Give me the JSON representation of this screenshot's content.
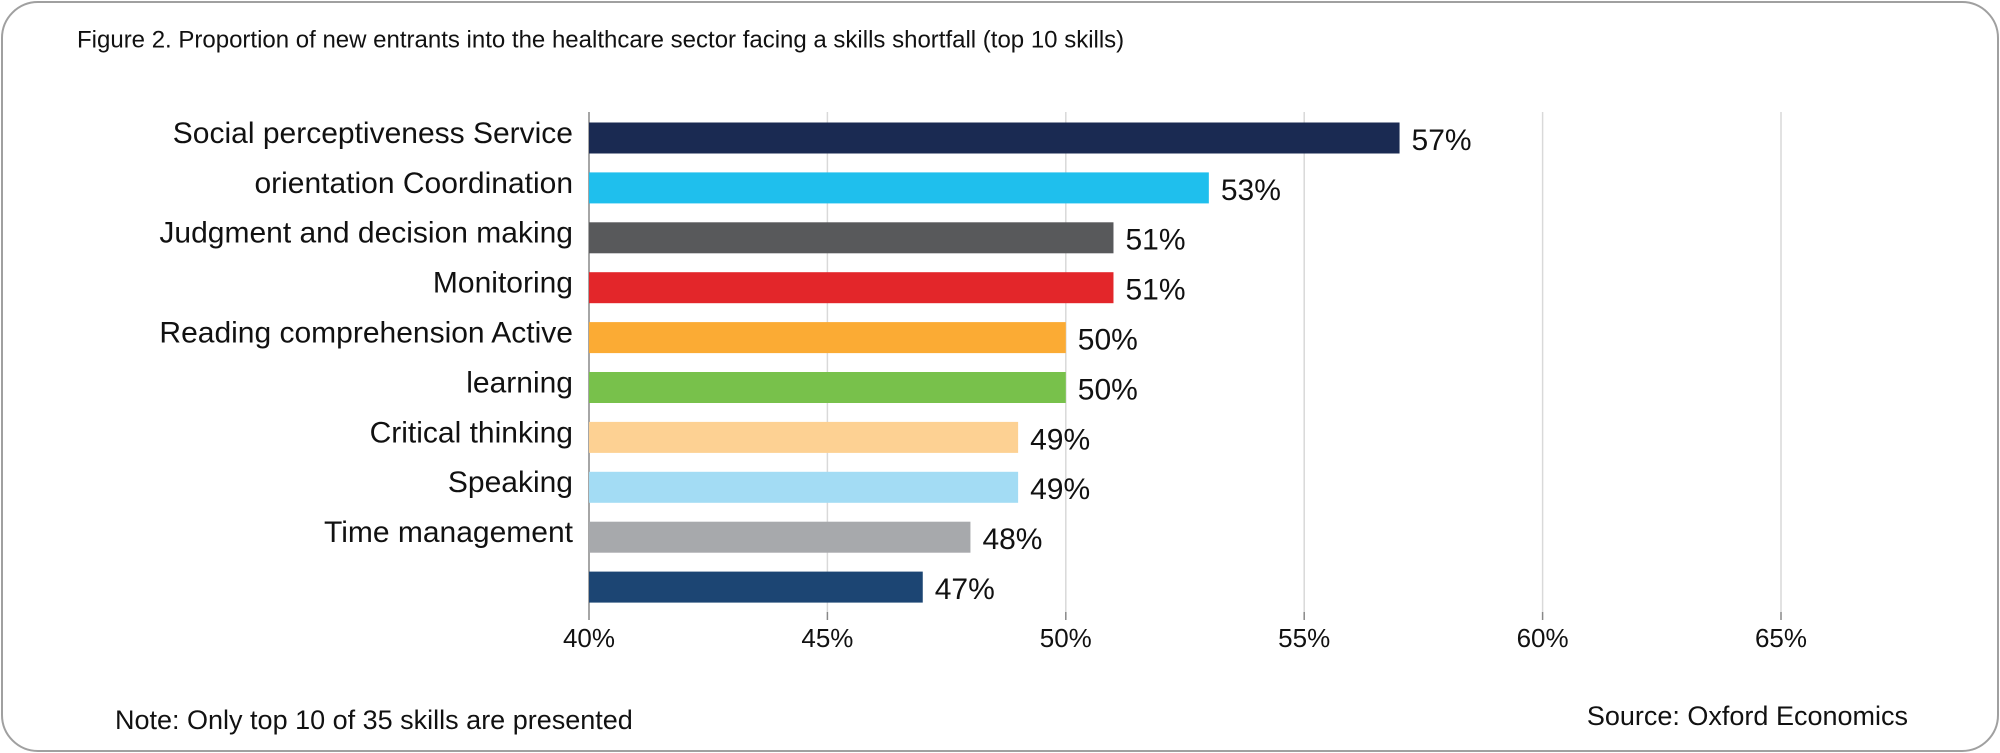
{
  "chart_data": {
    "type": "hbar",
    "title": "Figure 2. Proportion of new entrants into the healthcare sector facing a skills shortfall (top 10 skills)",
    "categories": [
      "Social perceptiveness Service",
      "orientation Coordination",
      "Judgment and decision making",
      "Monitoring",
      "Reading comprehension Active",
      "learning",
      "Critical thinking",
      "Speaking",
      "Time management",
      null
    ],
    "values": [
      57,
      53,
      51,
      51,
      50,
      50,
      49,
      49,
      48,
      47
    ],
    "value_labels": [
      "57%",
      "53%",
      "51%",
      "51%",
      "50%",
      "50%",
      "49%",
      "49%",
      "48%",
      "47%"
    ],
    "colors": [
      "#1a2a52",
      "#1fbfed",
      "#58595b",
      "#e3262a",
      "#fbab34",
      "#78c14b",
      "#fdd193",
      "#a3dcf4",
      "#a7a9ac",
      "#1c4573"
    ],
    "xlim": [
      40,
      65
    ],
    "xticks": [
      {
        "value": 40,
        "label": "40%"
      },
      {
        "value": 45,
        "label": "45%"
      },
      {
        "value": 50,
        "label": "50%"
      },
      {
        "value": 55,
        "label": "55%"
      },
      {
        "value": 60,
        "label": "60%"
      },
      {
        "value": 65,
        "label": "65%"
      }
    ],
    "grid": true,
    "note": "Note: Only top 10 of 35 skills are presented",
    "source": "Source:  Oxford Economics"
  }
}
